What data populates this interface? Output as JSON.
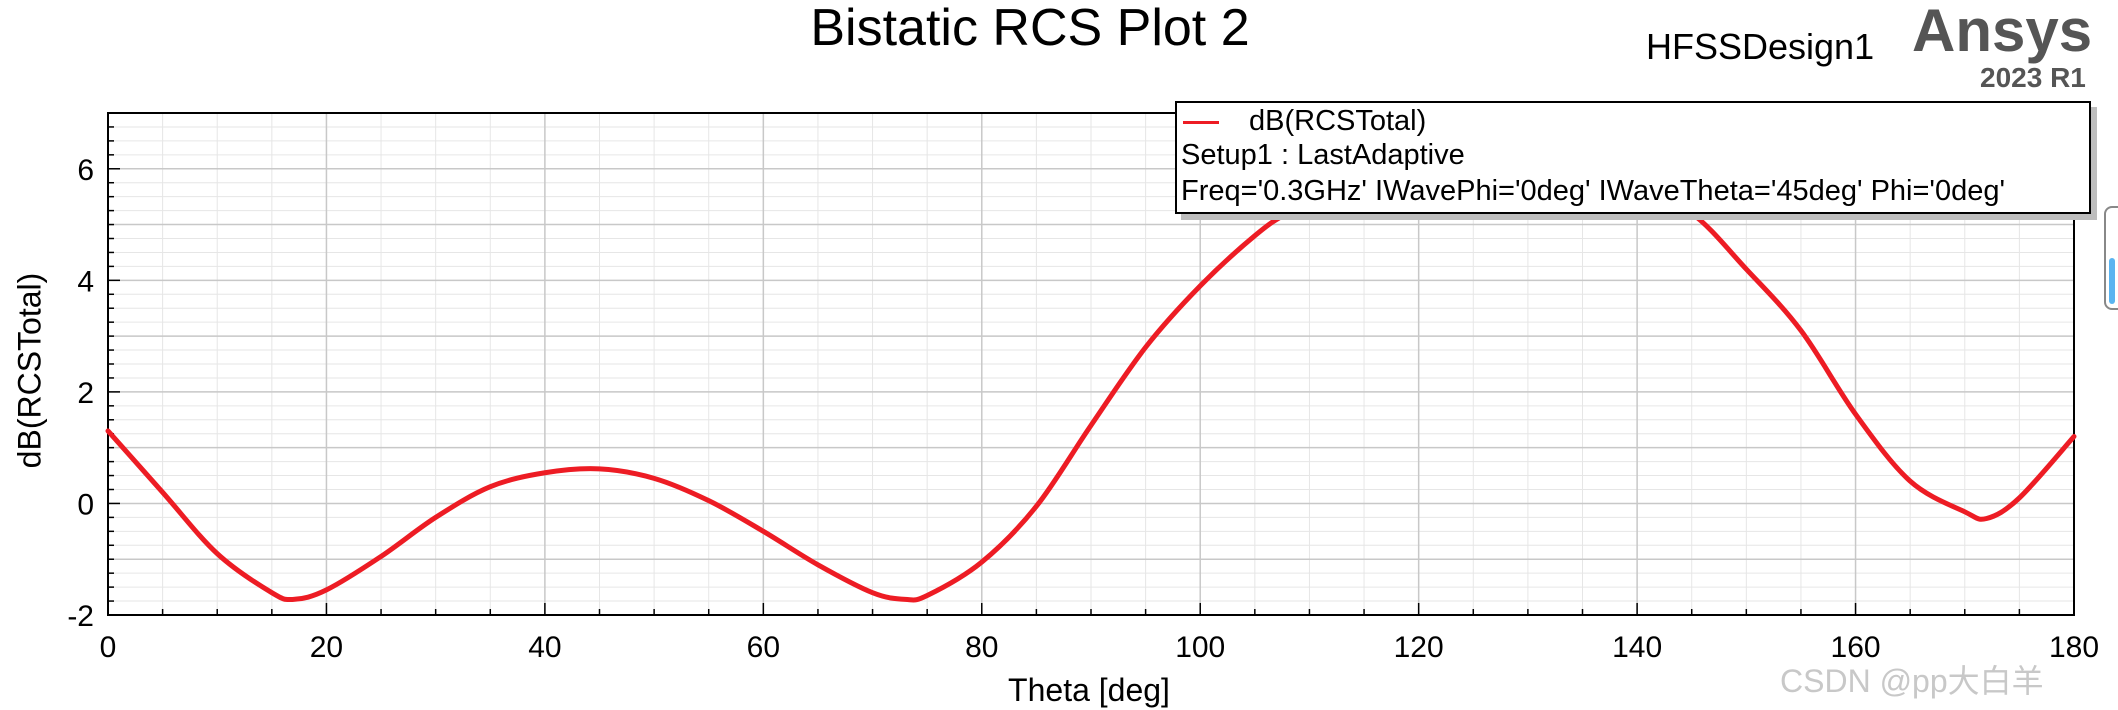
{
  "header": {
    "title": "Bistatic RCS Plot 2",
    "design_name": "HFSSDesign1",
    "brand": "Ansys",
    "version": "2023 R1"
  },
  "legend": {
    "series_label": "dB(RCSTotal)",
    "setup": "Setup1 : LastAdaptive",
    "params": "Freq='0.3GHz' IWavePhi='0deg' IWaveTheta='45deg' Phi='0deg'",
    "line_color": "#ed1c24"
  },
  "watermark": "CSDN @pp大白羊",
  "chart_data": {
    "type": "line",
    "title": "Bistatic RCS Plot 2",
    "xlabel": "Theta [deg]",
    "ylabel": "dB(RCSTotal)",
    "xlim": [
      0,
      180
    ],
    "ylim": [
      -2,
      7
    ],
    "xticks": [
      0,
      20,
      40,
      60,
      80,
      100,
      120,
      140,
      160,
      180
    ],
    "yticks": [
      -2,
      0,
      2,
      4,
      6
    ],
    "grid": true,
    "legend_position": "top-right",
    "colors": {
      "line": "#ed1c24",
      "grid_major": "#c8c8c8",
      "grid_minor": "#e6e6e6"
    },
    "series": [
      {
        "name": "dB(RCSTotal)",
        "x": [
          0,
          5,
          10,
          15,
          17,
          20,
          25,
          30,
          35,
          40,
          45,
          50,
          55,
          60,
          65,
          70,
          73,
          75,
          80,
          85,
          90,
          95,
          100,
          105,
          108,
          112,
          115,
          120,
          125,
          130,
          135,
          140,
          145,
          150,
          155,
          160,
          165,
          170,
          172,
          175,
          180
        ],
        "y": [
          1.3,
          0.2,
          -0.9,
          -1.6,
          -1.72,
          -1.55,
          -0.95,
          -0.25,
          0.3,
          0.55,
          0.62,
          0.45,
          0.05,
          -0.5,
          -1.1,
          -1.6,
          -1.72,
          -1.65,
          -1.05,
          -0.05,
          1.4,
          2.8,
          3.9,
          4.8,
          5.2,
          5.5,
          5.6,
          5.9,
          6.1,
          6.05,
          5.9,
          5.6,
          5.2,
          4.2,
          3.1,
          1.6,
          0.4,
          -0.15,
          -0.27,
          0.1,
          1.2
        ]
      }
    ]
  }
}
